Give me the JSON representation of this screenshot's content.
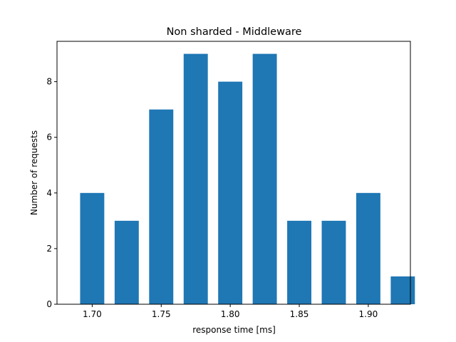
{
  "chart_data": {
    "type": "bar",
    "title": "Non sharded - Middleware",
    "xlabel": "response time [ms]",
    "ylabel": "Number of requests",
    "x": [
      1.7,
      1.725,
      1.75,
      1.775,
      1.8,
      1.825,
      1.85,
      1.875,
      1.9,
      1.925
    ],
    "values": [
      4,
      3,
      7,
      9,
      8,
      9,
      3,
      3,
      4,
      1
    ],
    "bar_width": 0.0175,
    "xlim": [
      1.6745,
      1.9305
    ],
    "ylim": [
      0,
      9.45
    ],
    "xticks": [
      1.7,
      1.75,
      1.8,
      1.85,
      1.9
    ],
    "xtick_labels": [
      "1.70",
      "1.75",
      "1.80",
      "1.85",
      "1.90"
    ],
    "yticks": [
      0,
      2,
      4,
      6,
      8
    ],
    "ytick_labels": [
      "0",
      "2",
      "4",
      "6",
      "8"
    ],
    "grid": false,
    "bar_color": "#1f77b4"
  }
}
